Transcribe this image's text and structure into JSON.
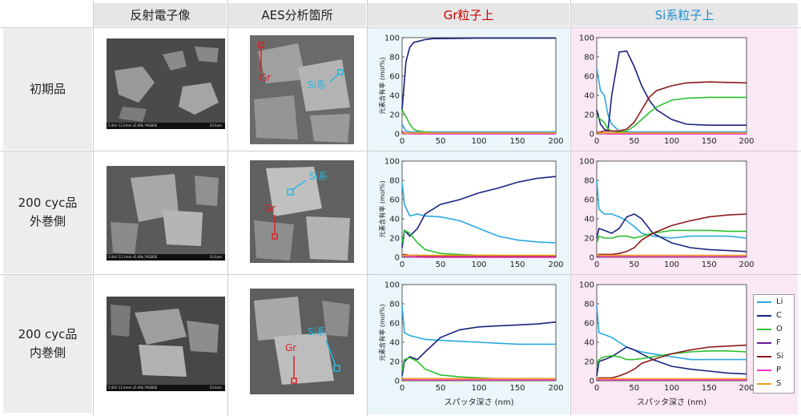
{
  "headers": {
    "col1": "反射電子像",
    "col2": "AES分析箇所",
    "col3": "Gr粒子上",
    "col4": "Si系粒子上"
  },
  "colors": {
    "gr_header": "#cc0000",
    "si_header": "#1e90d0",
    "gr_bg": "#eaf6fa",
    "si_bg": "#fbe8f5"
  },
  "rows": [
    {
      "label": [
        "初期品"
      ],
      "sem_caption": "5.0kV 13.2mm x5.00k YAGBSE",
      "sem_scale": "10.0um",
      "labels": {
        "gr": "Gr",
        "si": "Si系"
      }
    },
    {
      "label": [
        "200 cyc品",
        "外巻側"
      ],
      "sem_caption": "5.0kV 13.1mm x5.00k YAGBSE",
      "sem_scale": "10.0um",
      "labels": {
        "gr": "Gr",
        "si": "Si系"
      }
    },
    {
      "label": [
        "200 cyc品",
        "内巻側"
      ],
      "sem_caption": "5.0kV 13.4mm x5.00k YAGBSE",
      "sem_scale": "10.0um",
      "labels": {
        "gr": "Gr",
        "si": "Si系"
      }
    }
  ],
  "axis": {
    "ylabel": "元素含有率 (mol%)",
    "xlabel": "スパッタ深さ (nm)",
    "xticks": [
      "0",
      "50",
      "100",
      "150",
      "200"
    ],
    "yticks": [
      "0",
      "20",
      "40",
      "60",
      "80",
      "100"
    ]
  },
  "legend": {
    "items": [
      {
        "name": "Li",
        "color": "#2aa8e0"
      },
      {
        "name": "C",
        "color": "#1a237e"
      },
      {
        "name": "O",
        "color": "#2ec02e"
      },
      {
        "name": "F",
        "color": "#6a1b9a"
      },
      {
        "name": "Si",
        "color": "#8b1a1a"
      },
      {
        "name": "P",
        "color": "#ff33cc"
      },
      {
        "name": "S",
        "color": "#f0a020"
      }
    ]
  },
  "chart_data": [
    {
      "type": "line",
      "panel": "initial-gr",
      "xlim": [
        0,
        200
      ],
      "ylim": [
        0,
        100
      ],
      "x": [
        0,
        5,
        10,
        15,
        20,
        30,
        40,
        50,
        100,
        150,
        200
      ],
      "series": [
        {
          "name": "Li",
          "values": [
            10,
            3,
            2,
            2,
            2,
            2,
            2,
            2,
            2,
            2,
            2
          ]
        },
        {
          "name": "C",
          "values": [
            25,
            75,
            90,
            95,
            96,
            98,
            99,
            99,
            99.5,
            99.5,
            99.5
          ]
        },
        {
          "name": "O",
          "values": [
            25,
            18,
            10,
            5,
            3,
            2,
            1,
            1,
            1,
            1,
            1
          ]
        },
        {
          "name": "F",
          "values": [
            2,
            1,
            0.5,
            0,
            0,
            0,
            0,
            0,
            0,
            0,
            0
          ]
        },
        {
          "name": "Si",
          "values": [
            1,
            1,
            0.5,
            0.5,
            0.5,
            0.5,
            0.5,
            0.5,
            0.5,
            0.5,
            0.5
          ]
        },
        {
          "name": "P",
          "values": [
            1,
            0.5,
            0,
            0,
            0,
            0,
            0,
            0,
            0,
            0,
            0
          ]
        },
        {
          "name": "S",
          "values": [
            1,
            1,
            1,
            1,
            1,
            1,
            1,
            1,
            1,
            1,
            1
          ]
        }
      ]
    },
    {
      "type": "line",
      "panel": "initial-si",
      "xlim": [
        0,
        200
      ],
      "ylim": [
        0,
        100
      ],
      "x": [
        0,
        5,
        10,
        15,
        20,
        30,
        40,
        50,
        60,
        70,
        80,
        100,
        120,
        150,
        200
      ],
      "series": [
        {
          "name": "Li",
          "values": [
            68,
            45,
            40,
            20,
            10,
            3,
            2,
            2,
            2,
            2,
            2,
            2,
            2,
            2,
            2
          ]
        },
        {
          "name": "C",
          "values": [
            25,
            10,
            5,
            3,
            40,
            85,
            86,
            70,
            50,
            35,
            25,
            15,
            10,
            9,
            9
          ]
        },
        {
          "name": "O",
          "values": [
            18,
            15,
            12,
            5,
            3,
            2,
            3,
            8,
            15,
            22,
            28,
            35,
            37,
            38,
            38
          ]
        },
        {
          "name": "F",
          "values": [
            2,
            1,
            1,
            0,
            0,
            0,
            0,
            0,
            0,
            0,
            0,
            0,
            0,
            0,
            0
          ]
        },
        {
          "name": "Si",
          "values": [
            1,
            2,
            3,
            3,
            3,
            3,
            5,
            12,
            25,
            38,
            45,
            50,
            53,
            54,
            53
          ]
        },
        {
          "name": "P",
          "values": [
            1,
            1,
            0,
            0,
            0,
            0,
            0,
            0,
            0,
            0,
            0,
            0,
            0,
            0,
            0
          ]
        },
        {
          "name": "S",
          "values": [
            1,
            1,
            1,
            1,
            1,
            1,
            1,
            1,
            1,
            1,
            1,
            1,
            1,
            1,
            1
          ]
        }
      ]
    },
    {
      "type": "line",
      "panel": "outer-gr",
      "xlim": [
        0,
        200
      ],
      "ylim": [
        0,
        100
      ],
      "x": [
        0,
        3,
        10,
        20,
        30,
        50,
        75,
        100,
        125,
        150,
        175,
        200
      ],
      "series": [
        {
          "name": "Li",
          "values": [
            78,
            55,
            43,
            45,
            43,
            42,
            38,
            30,
            22,
            18,
            16,
            15
          ]
        },
        {
          "name": "C",
          "values": [
            10,
            28,
            22,
            30,
            45,
            55,
            60,
            67,
            72,
            78,
            82,
            84
          ]
        },
        {
          "name": "O",
          "values": [
            15,
            28,
            25,
            15,
            8,
            4,
            3,
            2,
            2,
            1,
            1,
            1
          ]
        },
        {
          "name": "F",
          "values": [
            3,
            2,
            1,
            1,
            0,
            0,
            0,
            0,
            0,
            0,
            0,
            0
          ]
        },
        {
          "name": "Si",
          "values": [
            2,
            3,
            2,
            2,
            1,
            1,
            1,
            1,
            1,
            1,
            1,
            1
          ]
        },
        {
          "name": "P",
          "values": [
            2,
            1,
            1,
            0,
            0,
            0,
            0,
            0,
            0,
            0,
            0,
            0
          ]
        },
        {
          "name": "S",
          "values": [
            2,
            2,
            2,
            2,
            2,
            2,
            2,
            2,
            2,
            2,
            2,
            2
          ]
        }
      ]
    },
    {
      "type": "line",
      "panel": "outer-si",
      "xlim": [
        0,
        200
      ],
      "ylim": [
        0,
        100
      ],
      "x": [
        0,
        3,
        10,
        20,
        30,
        40,
        50,
        60,
        75,
        100,
        125,
        150,
        175,
        200
      ],
      "series": [
        {
          "name": "Li",
          "values": [
            80,
            50,
            45,
            45,
            42,
            38,
            32,
            25,
            22,
            20,
            22,
            22,
            22,
            20
          ]
        },
        {
          "name": "C",
          "values": [
            20,
            30,
            28,
            25,
            30,
            42,
            45,
            40,
            25,
            15,
            10,
            8,
            7,
            6
          ]
        },
        {
          "name": "O",
          "values": [
            15,
            22,
            20,
            20,
            22,
            22,
            20,
            22,
            25,
            28,
            28,
            28,
            27,
            27
          ]
        },
        {
          "name": "F",
          "values": [
            2,
            1,
            1,
            1,
            1,
            1,
            1,
            1,
            1,
            1,
            1,
            1,
            1,
            1
          ]
        },
        {
          "name": "Si",
          "values": [
            2,
            3,
            3,
            3,
            4,
            6,
            10,
            18,
            25,
            33,
            38,
            42,
            44,
            45
          ]
        },
        {
          "name": "P",
          "values": [
            2,
            1,
            1,
            1,
            1,
            1,
            1,
            1,
            1,
            1,
            1,
            1,
            1,
            1
          ]
        },
        {
          "name": "S",
          "values": [
            2,
            2,
            2,
            2,
            2,
            2,
            2,
            2,
            2,
            2,
            2,
            2,
            2,
            2
          ]
        }
      ]
    },
    {
      "type": "line",
      "panel": "inner-gr",
      "xlim": [
        0,
        200
      ],
      "ylim": [
        0,
        100
      ],
      "x": [
        0,
        3,
        10,
        20,
        30,
        50,
        75,
        100,
        125,
        150,
        175,
        200
      ],
      "series": [
        {
          "name": "Li",
          "values": [
            78,
            50,
            47,
            45,
            43,
            42,
            41,
            40,
            39,
            38,
            38,
            38
          ]
        },
        {
          "name": "C",
          "values": [
            5,
            20,
            25,
            22,
            30,
            45,
            53,
            56,
            57,
            58,
            59,
            61
          ]
        },
        {
          "name": "O",
          "values": [
            10,
            22,
            24,
            20,
            12,
            6,
            4,
            3,
            2,
            2,
            2,
            2
          ]
        },
        {
          "name": "F",
          "values": [
            2,
            1,
            1,
            1,
            1,
            1,
            1,
            1,
            1,
            1,
            1,
            1
          ]
        },
        {
          "name": "Si",
          "values": [
            2,
            2,
            2,
            2,
            2,
            2,
            2,
            2,
            2,
            2,
            2,
            2
          ]
        },
        {
          "name": "P",
          "values": [
            2,
            1,
            1,
            1,
            1,
            1,
            1,
            1,
            1,
            1,
            1,
            1
          ]
        },
        {
          "name": "S",
          "values": [
            2,
            2,
            2,
            2,
            2,
            2,
            2,
            2,
            2,
            2,
            2,
            2
          ]
        }
      ]
    },
    {
      "type": "line",
      "panel": "inner-si",
      "xlim": [
        0,
        200
      ],
      "ylim": [
        0,
        100
      ],
      "x": [
        0,
        3,
        10,
        20,
        30,
        40,
        50,
        60,
        75,
        100,
        125,
        150,
        175,
        200
      ],
      "series": [
        {
          "name": "Li",
          "values": [
            78,
            50,
            48,
            45,
            40,
            35,
            32,
            30,
            28,
            25,
            22,
            22,
            22,
            22
          ]
        },
        {
          "name": "C",
          "values": [
            5,
            20,
            22,
            25,
            30,
            35,
            32,
            28,
            22,
            15,
            12,
            10,
            8,
            7
          ]
        },
        {
          "name": "O",
          "values": [
            15,
            22,
            25,
            26,
            25,
            22,
            22,
            23,
            25,
            28,
            30,
            31,
            31,
            30
          ]
        },
        {
          "name": "F",
          "values": [
            2,
            1,
            1,
            1,
            1,
            1,
            1,
            1,
            1,
            1,
            1,
            1,
            1,
            1
          ]
        },
        {
          "name": "Si",
          "values": [
            2,
            3,
            3,
            3,
            5,
            8,
            12,
            18,
            22,
            28,
            32,
            35,
            36,
            37
          ]
        },
        {
          "name": "P",
          "values": [
            2,
            1,
            1,
            1,
            1,
            1,
            1,
            1,
            1,
            1,
            1,
            1,
            1,
            1
          ]
        },
        {
          "name": "S",
          "values": [
            2,
            2,
            2,
            2,
            2,
            2,
            2,
            2,
            2,
            2,
            2,
            2,
            2,
            2
          ]
        }
      ]
    }
  ]
}
